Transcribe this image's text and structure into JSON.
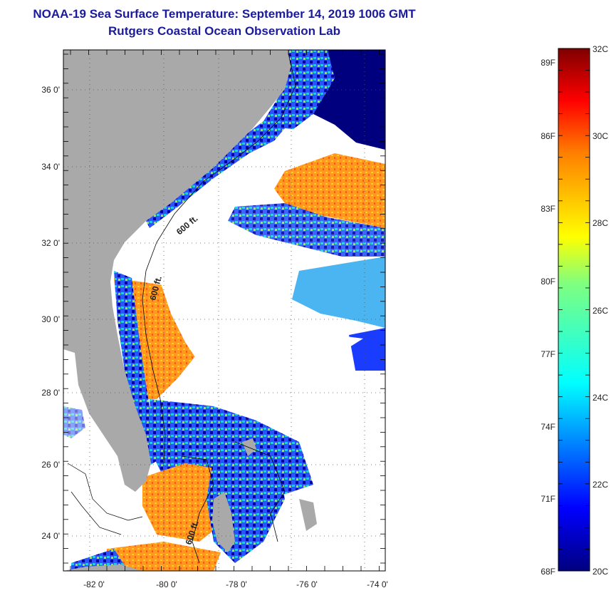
{
  "title": {
    "line1": "NOAA-19 Sea Surface Temperature:  September 14, 2019 1006 GMT",
    "line2": "Rutgers Coastal Ocean Observation Lab"
  },
  "map": {
    "lat_labels": [
      "36 0'",
      "34 0'",
      "32 0'",
      "30 0'",
      "28 0'",
      "26 0'",
      "24 0'"
    ],
    "lon_labels": [
      "-82 0'",
      "-80 0'",
      "-78 0'",
      "-76 0'",
      "-74 0'"
    ],
    "isobath_labels": [
      "600 ft.",
      "600 ft.",
      "600 ft."
    ],
    "colors": {
      "land": "#a9a9a9",
      "cloud": "#ffffff",
      "deep_blue": "#00007f",
      "frame": "#000000"
    }
  },
  "colorbar": {
    "fahrenheit_labels": [
      "89F",
      "86F",
      "83F",
      "80F",
      "77F",
      "74F",
      "71F",
      "68F"
    ],
    "celsius_labels": [
      "32C",
      "30C",
      "28C",
      "26C",
      "24C",
      "22C",
      "20C"
    ]
  }
}
